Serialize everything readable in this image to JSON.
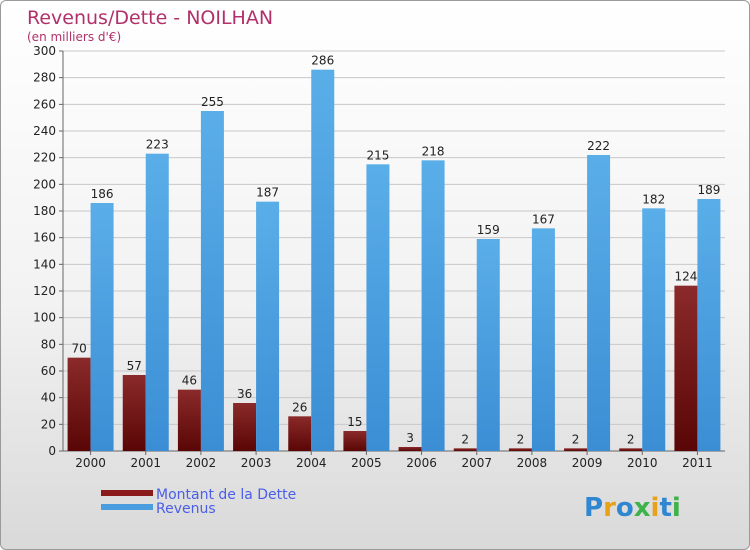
{
  "chart_data": {
    "type": "bar",
    "title": "Revenus/Dette - NOILHAN",
    "subtitle": "(en milliers d'€)",
    "categories": [
      "2000",
      "2001",
      "2002",
      "2003",
      "2004",
      "2005",
      "2006",
      "2007",
      "2008",
      "2009",
      "2010",
      "2011"
    ],
    "series": [
      {
        "name": "Montant de la Dette",
        "color": "#8b1a1a",
        "values": [
          70,
          57,
          46,
          36,
          26,
          15,
          3,
          2,
          2,
          2,
          2,
          124
        ]
      },
      {
        "name": "Revenus",
        "color": "#4a9ee0",
        "values": [
          186,
          223,
          255,
          187,
          286,
          215,
          218,
          159,
          167,
          222,
          182,
          189
        ]
      }
    ],
    "ylim": [
      0,
      300
    ],
    "yticks": [
      0,
      20,
      40,
      60,
      80,
      100,
      120,
      140,
      160,
      180,
      200,
      220,
      240,
      260,
      280,
      300
    ],
    "grid": true,
    "legend_position": "bottom-left"
  },
  "logo": {
    "text": "Proxiti"
  }
}
